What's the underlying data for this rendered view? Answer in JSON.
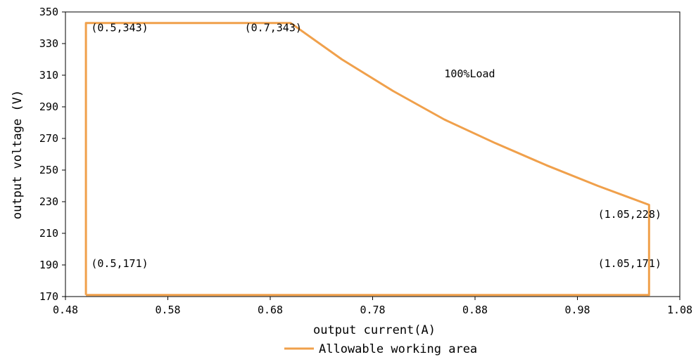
{
  "chart_data": {
    "type": "line",
    "xlabel": "output current(A)",
    "ylabel": "output voltage (V)",
    "xlim": [
      0.48,
      1.08
    ],
    "ylim": [
      170,
      350
    ],
    "xticks": [
      0.48,
      0.58,
      0.68,
      0.78,
      0.88,
      0.98,
      1.08
    ],
    "xtick_labels": [
      "0.48",
      "0.58",
      "0.68",
      "0.78",
      "0.88",
      "0.98",
      "1.08"
    ],
    "yticks": [
      170,
      190,
      210,
      230,
      250,
      270,
      290,
      310,
      330,
      350
    ],
    "ytick_labels": [
      "170",
      "190",
      "210",
      "230",
      "250",
      "270",
      "290",
      "310",
      "330",
      "350"
    ],
    "grid": false,
    "legend_position": "bottom-center",
    "series": [
      {
        "name": "Allowable working area",
        "color": "#F0A04B",
        "x": [
          0.5,
          0.5,
          0.7,
          0.75,
          0.8,
          0.85,
          0.9,
          0.95,
          1.0,
          1.05,
          1.05,
          0.5
        ],
        "y": [
          171,
          343,
          343,
          320,
          300,
          282,
          267,
          253,
          240,
          228,
          171,
          171
        ]
      }
    ],
    "annotations": [
      {
        "text": "(0.5,343)",
        "x": 0.505,
        "y": 340
      },
      {
        "text": "(0.7,343)",
        "x": 0.655,
        "y": 340
      },
      {
        "text": "100%Load",
        "x": 0.85,
        "y": 311
      },
      {
        "text": "(1.05,228)",
        "x": 1.0,
        "y": 222
      },
      {
        "text": "(0.5,171)",
        "x": 0.505,
        "y": 191
      },
      {
        "text": "(1.05,171)",
        "x": 1.0,
        "y": 191
      }
    ]
  }
}
